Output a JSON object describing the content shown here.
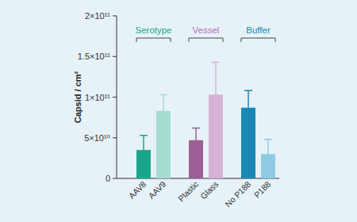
{
  "chart_data": {
    "type": "bar",
    "y_label": "Capsid / cm²",
    "categories": [
      "AAV8",
      "AAV9",
      "Plastic",
      "Glass",
      "No P188",
      "P188"
    ],
    "values": [
      35000000000,
      83000000000,
      47000000000,
      103000000000,
      87000000000,
      30000000000
    ],
    "errors": [
      18000000000,
      20000000000,
      15000000000,
      40000000000,
      21000000000,
      18000000000
    ],
    "colors": [
      "#1aa68c",
      "#a3ddd0",
      "#9e5f98",
      "#d6b3d6",
      "#1a88b3",
      "#8ecbe3"
    ],
    "groups": [
      {
        "name": "Serotype",
        "color": "#1aa68c",
        "categories": [
          "AAV8",
          "AAV9"
        ]
      },
      {
        "name": "Vessel",
        "color": "#b86fb3",
        "categories": [
          "Plastic",
          "Glass"
        ]
      },
      {
        "name": "Buffer",
        "color": "#1a88b3",
        "categories": [
          "No P188",
          "P188"
        ]
      }
    ],
    "ylim": [
      0,
      200000000000
    ],
    "yticks": [
      0,
      {
        "value": 50000000000,
        "label": "5×10¹⁰"
      },
      {
        "value": 100000000000,
        "label": "1×10¹¹"
      },
      {
        "value": 150000000000,
        "label": "1.5×10¹¹"
      },
      {
        "value": 200000000000,
        "label": "2×10¹¹"
      }
    ],
    "grid": false
  }
}
